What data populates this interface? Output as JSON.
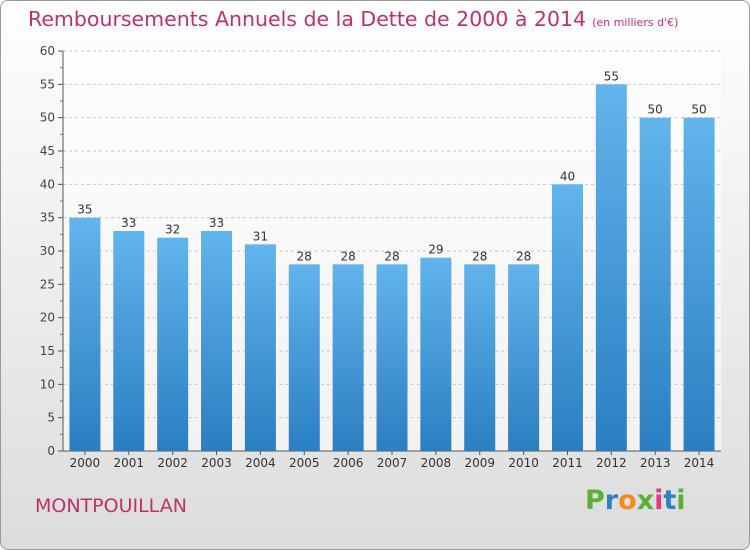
{
  "header": {
    "title": "Remboursements Annuels de la Dette de 2000 à 2014",
    "unit": "(en milliers d'€)"
  },
  "footer": {
    "city": "MONTPOUILLAN",
    "logo_letters": [
      "P",
      "r",
      "o",
      "x",
      "i",
      "t",
      "i"
    ],
    "logo_colors": [
      "#5cb038",
      "#2f7fc6",
      "#f28c1e",
      "#5cb038",
      "#e23a7a",
      "#2f7fc6",
      "#5cb038"
    ]
  },
  "colors": {
    "title": "#c0306a",
    "bar_top": "#62b4ec",
    "bar_bottom": "#2b7ec1"
  },
  "chart_data": {
    "type": "bar",
    "categories": [
      "2000",
      "2001",
      "2002",
      "2003",
      "2004",
      "2005",
      "2006",
      "2007",
      "2008",
      "2009",
      "2010",
      "2011",
      "2012",
      "2013",
      "2014"
    ],
    "values": [
      35,
      33,
      32,
      33,
      31,
      28,
      28,
      28,
      29,
      28,
      28,
      40,
      55,
      50,
      50
    ],
    "ylim": [
      0,
      60
    ],
    "yticks": [
      0,
      5,
      10,
      15,
      20,
      25,
      30,
      35,
      40,
      45,
      50,
      55,
      60
    ],
    "grid": "horizontal dashed",
    "data_labels": true
  }
}
